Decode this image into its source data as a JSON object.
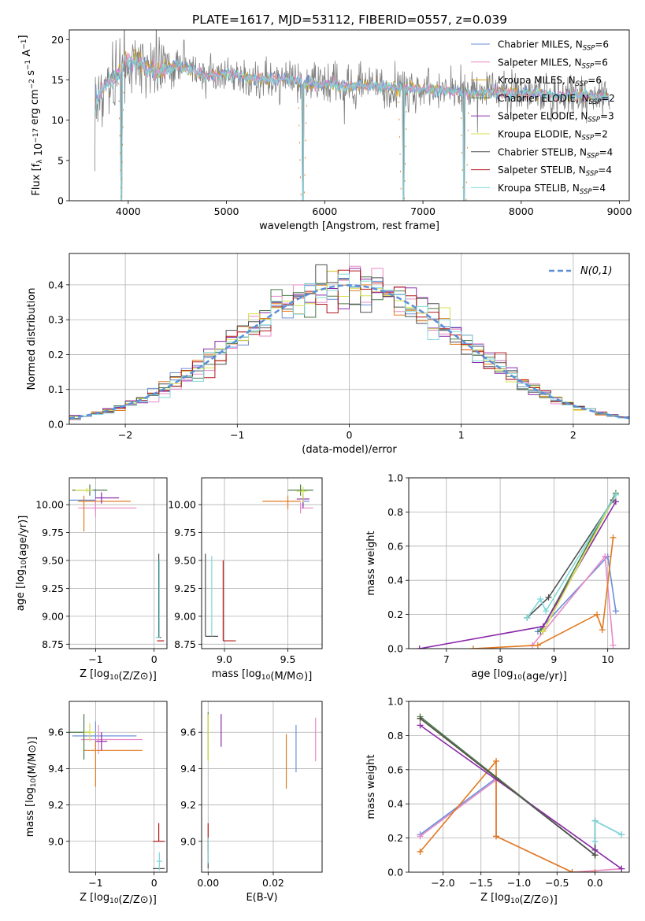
{
  "figure": {
    "title": "PLATE=1617, MJD=53112, FIBERID=0557, z=0.039"
  },
  "series_colors": [
    "#6a8fd8",
    "#e88ac8",
    "#d4a017",
    "#4a7a4a",
    "#8a2aa8",
    "#d6e04a",
    "#505050",
    "#b01818",
    "#7fd8d8"
  ],
  "chart_data": [
    {
      "id": "spectrum",
      "type": "line",
      "xlabel": "wavelength [Angstrom, rest frame]",
      "ylabel": "Flux [f_λ 10^-17 erg cm^-2 s^-1 A^-1]",
      "xlim": [
        3400,
        9100
      ],
      "ylim": [
        0,
        21.2
      ],
      "xticks": [
        4000,
        5000,
        6000,
        7000,
        8000,
        9000
      ],
      "yticks": [
        0,
        5,
        10,
        15,
        20
      ],
      "grid": false,
      "legend_position": "top-right",
      "legend": [
        {
          "base": "Chabrier MILES, N",
          "sub": "SSP",
          "tail": "=6"
        },
        {
          "base": "Salpeter MILES, N",
          "sub": "SSP",
          "tail": "=6"
        },
        {
          "base": "Kroupa MILES, N",
          "sub": "SSP",
          "tail": "=6"
        },
        {
          "base": "Chabrier ELODIE, N",
          "sub": "SSP",
          "tail": "=2"
        },
        {
          "base": "Salpeter ELODIE, N",
          "sub": "SSP",
          "tail": "=3"
        },
        {
          "base": "Kroupa ELODIE, N",
          "sub": "SSP",
          "tail": "=2"
        },
        {
          "base": "Chabrier STELIB, N",
          "sub": "SSP",
          "tail": "=4"
        },
        {
          "base": "Salpeter STELIB, N",
          "sub": "SSP",
          "tail": "=4"
        },
        {
          "base": "Kroupa STELIB, N",
          "sub": "SSP",
          "tail": "=4"
        }
      ],
      "observed_color": "#808080",
      "spectrum_points": [
        [
          3650,
          12
        ],
        [
          3700,
          13
        ],
        [
          3750,
          14
        ],
        [
          3800,
          14.5
        ],
        [
          3850,
          15
        ],
        [
          3900,
          16
        ],
        [
          3950,
          17
        ],
        [
          4000,
          17.5
        ],
        [
          4100,
          17
        ],
        [
          4200,
          16.5
        ],
        [
          4300,
          16
        ],
        [
          4400,
          16.5
        ],
        [
          4500,
          16.8
        ],
        [
          4600,
          16.5
        ],
        [
          4800,
          15.5
        ],
        [
          5000,
          15.8
        ],
        [
          5200,
          15.3
        ],
        [
          5400,
          15
        ],
        [
          5600,
          15.2
        ],
        [
          5800,
          14.6
        ],
        [
          6000,
          14.5
        ],
        [
          6200,
          14.2
        ],
        [
          6400,
          14.4
        ],
        [
          6600,
          14.1
        ],
        [
          6800,
          14
        ],
        [
          7000,
          13.9
        ],
        [
          7200,
          13.7
        ],
        [
          7400,
          13.4
        ],
        [
          7600,
          13.4
        ],
        [
          7800,
          13.5
        ],
        [
          8000,
          13.2
        ],
        [
          8200,
          13.3
        ],
        [
          8400,
          13
        ],
        [
          8600,
          13.1
        ],
        [
          8800,
          12.9
        ],
        [
          8900,
          12.8
        ]
      ],
      "drops": [
        3930,
        5780,
        6800,
        7420
      ]
    },
    {
      "id": "residuals",
      "type": "histogram",
      "xlabel": "(data-model)/error",
      "ylabel": "Normed distribution",
      "xlim": [
        -2.5,
        2.5
      ],
      "ylim": [
        0,
        0.49
      ],
      "xticks": [
        -2,
        -1,
        0,
        1,
        2
      ],
      "yticks": [
        0.0,
        0.1,
        0.2,
        0.3,
        0.4
      ],
      "grid": true,
      "bin_width": 0.1,
      "legend_position": "top-right",
      "reference_curve": {
        "label": "N(0,1)",
        "color": "#5a8fd8"
      }
    },
    {
      "id": "age-vs-Z",
      "type": "scatter",
      "xlabel": "Z [log10(Z/Z⊙)]",
      "ylabel": "age  [log10(age/yr)]",
      "xlim": [
        -1.45,
        0.22
      ],
      "ylim": [
        8.71,
        10.24
      ],
      "xticks": [
        -1,
        0
      ],
      "yticks": [
        8.75,
        9.0,
        9.25,
        9.5,
        9.75,
        10.0
      ],
      "grid": true,
      "points": [
        {
          "x": -1.0,
          "y": 10.04,
          "xerr": [
            0.7,
            0.0
          ],
          "yerr": [
            0.1,
            0.1
          ],
          "series": 0
        },
        {
          "x": -1.0,
          "y": 9.97,
          "xerr": [
            0.3,
            0.7
          ],
          "yerr": [
            0.08,
            0.08
          ],
          "series": 1
        },
        {
          "x": -1.2,
          "y": 10.03,
          "xerr": [
            0.1,
            0.8
          ],
          "yerr": [
            0.27,
            0.05
          ],
          "series": 2
        },
        {
          "x": -1.1,
          "y": 10.13,
          "xerr": [
            0.3,
            0.3
          ],
          "yerr": [
            0.05,
            0.05
          ],
          "series": 3
        },
        {
          "x": -0.9,
          "y": 10.06,
          "xerr": [
            0.1,
            0.3
          ],
          "yerr": [
            0.05,
            0.05
          ],
          "series": 4
        },
        {
          "x": -1.15,
          "y": 10.13,
          "xerr": [
            0.2,
            0.1
          ],
          "yerr": [
            0.02,
            0.02
          ],
          "series": 5
        },
        {
          "x": 0.08,
          "y": 8.81,
          "xerr": [
            0.04,
            0.04
          ],
          "yerr": [
            0.0,
            0.75
          ],
          "series": 6
        },
        {
          "x": 0.05,
          "y": 8.78,
          "xerr": [
            0.0,
            0.12
          ],
          "yerr": [
            0.0,
            0.0
          ],
          "series": 7
        },
        {
          "x": 0.09,
          "y": 8.81,
          "xerr": [
            0.06,
            0.0
          ],
          "yerr": [
            0.0,
            0.7
          ],
          "series": 8
        }
      ]
    },
    {
      "id": "age-vs-mass",
      "type": "scatter",
      "xlabel": "mass [log10(M/M⊙)]",
      "ylabel": "",
      "xlim": [
        8.82,
        9.77
      ],
      "ylim": [
        8.71,
        10.24
      ],
      "xticks": [
        9.0,
        9.5
      ],
      "yticks": [
        8.75,
        9.0,
        9.25,
        9.5,
        9.75,
        10.0
      ],
      "grid": true,
      "points": [
        {
          "x": 9.62,
          "y": 10.03,
          "xerr": [
            0.0,
            0.05
          ],
          "yerr": [
            0.05,
            0.05
          ],
          "series": 0
        },
        {
          "x": 9.6,
          "y": 9.97,
          "xerr": [
            0.0,
            0.1
          ],
          "yerr": [
            0.05,
            0.05
          ],
          "series": 1
        },
        {
          "x": 9.5,
          "y": 10.03,
          "xerr": [
            0.2,
            0.1
          ],
          "yerr": [
            0.07,
            0.05
          ],
          "series": 2
        },
        {
          "x": 9.6,
          "y": 10.13,
          "xerr": [
            0.1,
            0.1
          ],
          "yerr": [
            0.05,
            0.05
          ],
          "series": 3
        },
        {
          "x": 9.62,
          "y": 10.05,
          "xerr": [
            0.05,
            0.05
          ],
          "yerr": [
            0.08,
            0.05
          ],
          "series": 4
        },
        {
          "x": 9.62,
          "y": 10.12,
          "xerr": [
            0.05,
            0.03
          ],
          "yerr": [
            0.1,
            0.04
          ],
          "series": 5
        },
        {
          "x": 8.85,
          "y": 8.82,
          "xerr": [
            0.0,
            0.1
          ],
          "yerr": [
            0.0,
            0.74
          ],
          "series": 6
        },
        {
          "x": 8.99,
          "y": 8.78,
          "xerr": [
            0.0,
            0.1
          ],
          "yerr": [
            0.0,
            0.72
          ],
          "series": 7
        },
        {
          "x": 8.9,
          "y": 8.82,
          "xerr": [
            0.0,
            0.0
          ],
          "yerr": [
            0.0,
            0.72
          ],
          "series": 8
        }
      ]
    },
    {
      "id": "massweight-vs-age",
      "type": "line",
      "xlabel": "age  [log10(age/yr)]",
      "ylabel": "mass weight",
      "xlim": [
        6.3,
        10.4
      ],
      "ylim": [
        0,
        1.0
      ],
      "xticks": [
        7,
        8,
        9,
        10
      ],
      "yticks": [
        0.0,
        0.2,
        0.4,
        0.6,
        0.8,
        1.0
      ],
      "grid": true,
      "lines": [
        {
          "series": 0,
          "x": [
            8.7,
            10.0,
            10.15
          ],
          "y": [
            0.1,
            0.54,
            0.22
          ]
        },
        {
          "series": 1,
          "x": [
            8.6,
            9.95,
            10.1
          ],
          "y": [
            0.02,
            0.54,
            0.02
          ]
        },
        {
          "series": 2,
          "x": [
            7.5,
            8.7,
            9.8,
            9.9,
            10.1
          ],
          "y": [
            0.0,
            0.02,
            0.2,
            0.11,
            0.65
          ]
        },
        {
          "series": 3,
          "x": [
            8.75,
            10.15
          ],
          "y": [
            0.1,
            0.91
          ]
        },
        {
          "series": 4,
          "x": [
            6.5,
            8.8,
            10.15
          ],
          "y": [
            0.0,
            0.13,
            0.86
          ]
        },
        {
          "series": 5,
          "x": [
            8.8,
            10.15
          ],
          "y": [
            0.1,
            0.9
          ]
        },
        {
          "series": 6,
          "x": [
            8.5,
            8.9,
            10.1
          ],
          "y": [
            0.18,
            0.3,
            0.87
          ]
        },
        {
          "series": 8,
          "x": [
            8.5,
            8.75,
            8.85,
            10.15
          ],
          "y": [
            0.18,
            0.29,
            0.22,
            0.9
          ]
        }
      ]
    },
    {
      "id": "mass-vs-Z",
      "type": "scatter",
      "xlabel": "Z [log10(Z/Z⊙)]",
      "ylabel": "mass [log10(M/M⊙)]",
      "xlim": [
        -1.45,
        0.22
      ],
      "ylim": [
        8.83,
        9.77
      ],
      "xticks": [
        -1,
        0
      ],
      "yticks": [
        9.0,
        9.2,
        9.4,
        9.6
      ],
      "grid": true,
      "points": [
        {
          "x": -1.0,
          "y": 9.58,
          "xerr": [
            0.4,
            0.7
          ],
          "yerr": [
            0.08,
            0.08
          ],
          "series": 0
        },
        {
          "x": -0.95,
          "y": 9.56,
          "xerr": [
            0.3,
            0.75
          ],
          "yerr": [
            0.08,
            0.08
          ],
          "series": 1
        },
        {
          "x": -1.0,
          "y": 9.5,
          "xerr": [
            0.2,
            0.8
          ],
          "yerr": [
            0.2,
            0.05
          ],
          "series": 2
        },
        {
          "x": -1.2,
          "y": 9.6,
          "xerr": [
            0.4,
            0.1
          ],
          "yerr": [
            0.15,
            0.1
          ],
          "series": 3
        },
        {
          "x": -0.9,
          "y": 9.55,
          "xerr": [
            0.1,
            0.1
          ],
          "yerr": [
            0.05,
            0.05
          ],
          "series": 4
        },
        {
          "x": -1.1,
          "y": 9.6,
          "xerr": [
            0.1,
            0.1
          ],
          "yerr": [
            0.05,
            0.05
          ],
          "series": 5
        },
        {
          "x": 0.08,
          "y": 8.85,
          "xerr": [
            0.1,
            0.1
          ],
          "yerr": [
            0.0,
            0.0
          ],
          "series": 6
        },
        {
          "x": 0.08,
          "y": 9.0,
          "xerr": [
            0.1,
            0.1
          ],
          "yerr": [
            0.0,
            0.1
          ],
          "series": 7
        },
        {
          "x": 0.09,
          "y": 8.89,
          "xerr": [
            0.05,
            0.05
          ],
          "yerr": [
            0.05,
            0.05
          ],
          "series": 8
        }
      ]
    },
    {
      "id": "mass-vs-EBV",
      "type": "scatter",
      "xlabel": "E(B-V)",
      "ylabel": "",
      "xlim": [
        -0.002,
        0.035
      ],
      "ylim": [
        8.83,
        9.77
      ],
      "xticks": [
        0.0,
        0.02
      ],
      "yticks": [
        9.0,
        9.2,
        9.4,
        9.6
      ],
      "grid": true,
      "points": [
        {
          "x": 0.027,
          "y": 9.51,
          "xerr": [
            0,
            0
          ],
          "yerr": [
            0.13,
            0.13
          ],
          "series": 0
        },
        {
          "x": 0.033,
          "y": 9.56,
          "xerr": [
            0,
            0
          ],
          "yerr": [
            0.12,
            0.12
          ],
          "series": 1
        },
        {
          "x": 0.024,
          "y": 9.44,
          "xerr": [
            0,
            0
          ],
          "yerr": [
            0.15,
            0.15
          ],
          "series": 2
        },
        {
          "x": 0.0,
          "y": 9.58,
          "xerr": [
            0,
            0
          ],
          "yerr": [
            0.13,
            0.13
          ],
          "series": 3
        },
        {
          "x": 0.004,
          "y": 9.61,
          "xerr": [
            0,
            0
          ],
          "yerr": [
            0.09,
            0.09
          ],
          "series": 4
        },
        {
          "x": 0.0,
          "y": 9.57,
          "xerr": [
            0,
            0
          ],
          "yerr": [
            0.13,
            0.13
          ],
          "series": 5
        },
        {
          "x": 0.0,
          "y": 8.93,
          "xerr": [
            0,
            0
          ],
          "yerr": [
            0.08,
            0.08
          ],
          "series": 6
        },
        {
          "x": 0.0,
          "y": 9.02,
          "xerr": [
            0,
            0
          ],
          "yerr": [
            0.08,
            0.08
          ],
          "series": 7
        },
        {
          "x": 0.0,
          "y": 8.95,
          "xerr": [
            0,
            0
          ],
          "yerr": [
            0.07,
            0.07
          ],
          "series": 8
        }
      ]
    },
    {
      "id": "massweight-vs-Z",
      "type": "line",
      "xlabel": "Z [log10(Z/Z⊙)]",
      "ylabel": "mass weight",
      "xlim": [
        -2.45,
        0.45
      ],
      "ylim": [
        0,
        1.0
      ],
      "xticks": [
        -2.0,
        -1.5,
        -1.0,
        -0.5,
        0.0
      ],
      "yticks": [
        0.0,
        0.2,
        0.4,
        0.6,
        0.8,
        1.0
      ],
      "grid": true,
      "lines": [
        {
          "series": 0,
          "x": [
            -2.3,
            -1.3,
            0.0,
            0.0,
            0.35
          ],
          "y": [
            0.22,
            0.55,
            0.1,
            0.3,
            0.22
          ]
        },
        {
          "series": 1,
          "x": [
            -2.3,
            -1.3,
            -1.3,
            -0.3,
            0.35
          ],
          "y": [
            0.21,
            0.54,
            0.21,
            0.0,
            0.02
          ]
        },
        {
          "series": 2,
          "x": [
            -2.3,
            -1.3,
            -1.3,
            -0.3,
            0.0
          ],
          "y": [
            0.12,
            0.65,
            0.21,
            0.0,
            0.0
          ]
        },
        {
          "series": 3,
          "x": [
            -2.3,
            0.0
          ],
          "y": [
            0.91,
            0.1
          ]
        },
        {
          "series": 4,
          "x": [
            -2.3,
            0.0,
            0.35
          ],
          "y": [
            0.86,
            0.13,
            0.02
          ]
        },
        {
          "series": 5,
          "x": [
            -2.3,
            0.0
          ],
          "y": [
            0.9,
            0.1
          ]
        },
        {
          "series": 6,
          "x": [
            -2.3,
            0.0,
            0.0
          ],
          "y": [
            0.9,
            0.1,
            0.3
          ]
        },
        {
          "series": 8,
          "x": [
            0.0,
            0.0,
            0.35
          ],
          "y": [
            0.18,
            0.3,
            0.22
          ]
        }
      ]
    }
  ]
}
